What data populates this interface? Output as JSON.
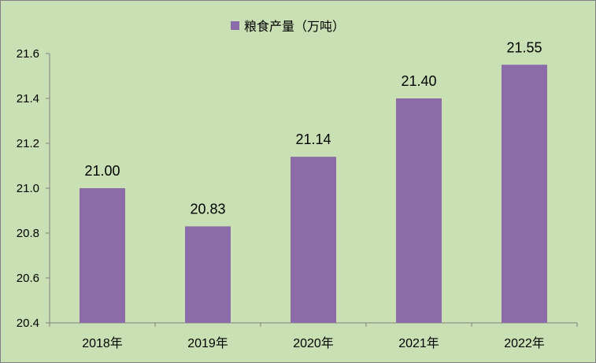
{
  "colors": {
    "background": "#c9e0b4",
    "bar": "#8b6ca8",
    "axis": "#7f7f7f"
  },
  "legend": {
    "label": "粮食产量（万吨）"
  },
  "chart_data": {
    "type": "bar",
    "categories": [
      "2018年",
      "2019年",
      "2020年",
      "2021年",
      "2022年"
    ],
    "series": [
      {
        "name": "粮食产量（万吨）",
        "values": [
          21.0,
          20.83,
          21.14,
          21.4,
          21.55
        ]
      }
    ],
    "data_labels": [
      "21.00",
      "20.83",
      "21.14",
      "21.40",
      "21.55"
    ],
    "y_ticks": [
      "20.4",
      "20.6",
      "20.8",
      "21.0",
      "21.2",
      "21.4",
      "21.6"
    ],
    "ylim": [
      20.4,
      21.6
    ],
    "grid": false,
    "legend_position": "top"
  }
}
